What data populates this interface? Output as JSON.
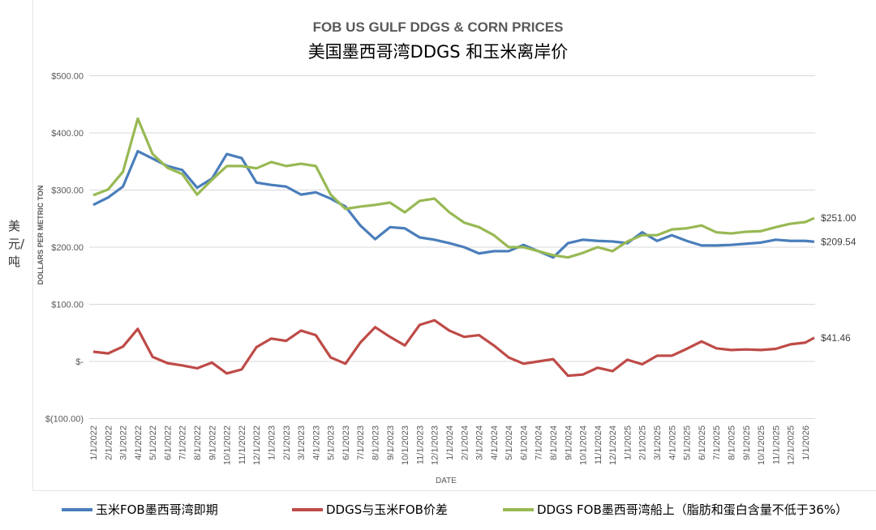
{
  "chart_data": {
    "type": "line",
    "title": "FOB US GULF DDGS & CORN PRICES",
    "subtitle": "美国墨西哥湾DDGS 和玉米离岸价",
    "xlabel": "DATE",
    "ylabel": "DOLLARS PER METRIC TON",
    "ylabel_cn": "美元/吨",
    "ylim": [
      -100,
      500
    ],
    "yticks": [
      500,
      400,
      300,
      200,
      100,
      0,
      -100
    ],
    "ytick_labels": [
      "$500.00",
      "$400.00",
      "$300.00",
      "$200.00",
      "$100.00",
      "$-",
      "$(100.00)"
    ],
    "grid": true,
    "legend_position": "bottom",
    "x": [
      "1/1/2022",
      "2/1/2022",
      "3/1/2022",
      "4/1/2022",
      "5/1/2022",
      "6/1/2022",
      "7/1/2022",
      "8/1/2022",
      "9/1/2022",
      "10/1/2022",
      "11/1/2022",
      "12/1/2022",
      "1/1/2023",
      "2/1/2023",
      "3/1/2023",
      "4/1/2023",
      "5/1/2023",
      "6/1/2023",
      "7/1/2023",
      "8/1/2023",
      "9/1/2023",
      "10/1/2023",
      "11/1/2023",
      "12/1/2023",
      "1/1/2024",
      "2/1/2024",
      "3/1/2024",
      "4/1/2024",
      "5/1/2024",
      "6/1/2024",
      "7/1/2024",
      "8/1/2024",
      "9/1/2024",
      "10/1/2024",
      "11/1/2024",
      "12/1/2024",
      "1/1/2025",
      "2/1/2025",
      "3/1/2025",
      "4/1/2025",
      "5/1/2025",
      "6/1/2025",
      "7/1/2025",
      "8/1/2025",
      "9/1/2025",
      "10/1/2025",
      "11/1/2025",
      "12/1/2025",
      "1/1/2026",
      "1/20/2026"
    ],
    "xtick_labels": [
      "1/1/2022",
      "2/1/2022",
      "3/1/2022",
      "4/1/2022",
      "5/1/2022",
      "6/1/2022",
      "7/1/2022",
      "8/1/2022",
      "9/1/2022",
      "10/1/2022",
      "11/1/2022",
      "12/1/2022",
      "1/1/2023",
      "2/1/2023",
      "3/1/2023",
      "4/1/2023",
      "5/1/2023",
      "6/1/2023",
      "7/1/2023",
      "8/1/2023",
      "9/1/2023",
      "10/1/2023",
      "11/1/2023",
      "12/1/2023",
      "1/1/2024",
      "2/1/2024",
      "3/1/2024",
      "4/1/2024",
      "5/1/2024",
      "6/1/2024",
      "7/1/2024",
      "8/1/2024",
      "9/1/2024",
      "10/1/2024",
      "11/1/2024",
      "12/1/2024",
      "1/1/2025",
      "2/1/2025",
      "3/1/2025",
      "4/1/2025",
      "5/1/2025",
      "6/1/2025",
      "7/1/2025",
      "8/1/2025",
      "9/1/2025",
      "10/1/2025",
      "11/1/2025",
      "12/1/2025",
      "1/1/2026"
    ],
    "series": [
      {
        "name": "玉米FOB墨西哥湾即期",
        "color": "#4a7ebb",
        "end_label": "$209.54",
        "values": [
          274,
          287,
          306,
          368,
          355,
          342,
          335,
          304,
          320,
          363,
          356,
          313,
          309,
          306,
          292,
          296,
          285,
          271,
          238,
          214,
          235,
          233,
          217,
          213,
          207,
          200,
          189,
          193,
          193,
          204,
          193,
          182,
          207,
          213,
          211,
          210,
          207,
          226,
          211,
          221,
          211,
          203,
          203,
          204,
          206,
          208,
          213,
          211,
          211,
          209.54
        ]
      },
      {
        "name": "DDGS与玉米FOB价差",
        "color": "#be4b48",
        "end_label": "$41.46",
        "values": [
          17,
          14,
          26,
          57,
          8,
          -3,
          -7,
          -12,
          -2,
          -21,
          -14,
          25,
          40,
          36,
          54,
          46,
          7,
          -4,
          33,
          60,
          43,
          28,
          64,
          72,
          54,
          43,
          46,
          28,
          7,
          -4,
          0,
          4,
          -25,
          -23,
          -11,
          -17,
          3,
          -5,
          10,
          10,
          22,
          35,
          23,
          20,
          21,
          20,
          22,
          30,
          33,
          41.46
        ]
      },
      {
        "name": "DDGS FOB墨西哥湾船上（脂肪和蛋白含量不低于36%）",
        "color": "#98b954",
        "end_label": "$251.00",
        "values": [
          291,
          301,
          332,
          425,
          363,
          339,
          328,
          292,
          318,
          342,
          342,
          338,
          349,
          342,
          346,
          342,
          292,
          267,
          271,
          274,
          278,
          261,
          281,
          285,
          261,
          243,
          235,
          221,
          200,
          200,
          193,
          186,
          182,
          190,
          200,
          193,
          210,
          221,
          221,
          231,
          233,
          238,
          226,
          224,
          227,
          228,
          235,
          241,
          244,
          251
        ]
      }
    ]
  }
}
